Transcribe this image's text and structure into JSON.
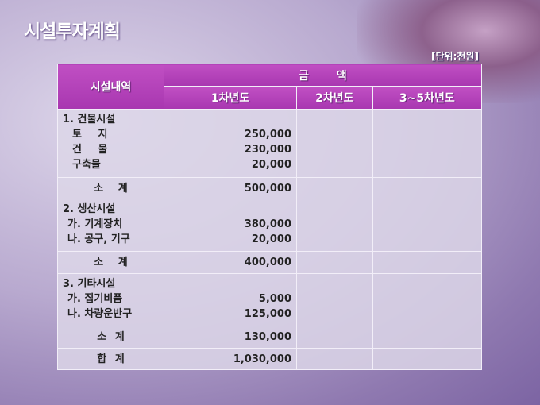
{
  "title": "시설투자계획",
  "unit": "[단위:천원]",
  "header": {
    "item": "시설내역",
    "amount": "금 액",
    "years": [
      "1차년도",
      "2차년도",
      "3~5차년도"
    ]
  },
  "groups": [
    {
      "heading": "1. 건물시설",
      "items": [
        {
          "label": "토 지",
          "value": "250,000"
        },
        {
          "label": "건 물",
          "value": "230,000"
        },
        {
          "label": "구축물",
          "value": "20,000"
        }
      ],
      "subtotal_label": "소 계",
      "subtotal": "500,000"
    },
    {
      "heading": "2. 생산시설",
      "items": [
        {
          "label": "가. 기계장치",
          "value": "380,000"
        },
        {
          "label": "나. 공구, 기구",
          "value": "20,000"
        }
      ],
      "subtotal_label": "소 계",
      "subtotal": "400,000"
    },
    {
      "heading": "3. 기타시설",
      "items": [
        {
          "label": "가. 집기비품",
          "value": "5,000"
        },
        {
          "label": "나. 차량운반구",
          "value": "125,000"
        }
      ],
      "subtotal_label": "소 계",
      "subtotal": "130,000"
    }
  ],
  "total_label": "합 계",
  "total": "1,030,000"
}
